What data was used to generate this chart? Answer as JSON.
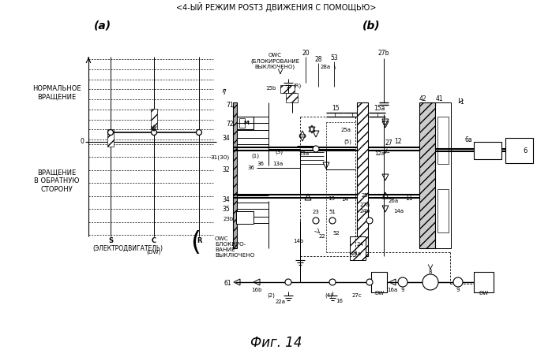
{
  "title": "<4-ЫЙ РЕЖИМ POST3 ДВИЖЕНИЯ С ПОМОЩЬЮ>",
  "fig_label": "Фиг. 14",
  "label_a": "(a)",
  "label_b": "(b)",
  "bg_color": "#ffffff",
  "lc": "#000000",
  "left_panel": {
    "normal_rotation": "НОРМАЛЬНОЕ\nВРАЩЕНИЕ",
    "reverse_rotation": "ВРАЩЕНИЕ\nВ ОБРАТНУЮ\nСТОРОНУ",
    "motor_label": "(ЭЛЕКТРОДВИГАТЕЛЬ)",
    "S": "S",
    "C": "C",
    "R": "R",
    "dw": "(DW)",
    "owc": "OWC\nБЛОКИРО-\nВАНИЕ\nВЫКЛЮЧЕНО",
    "zero": "0"
  }
}
